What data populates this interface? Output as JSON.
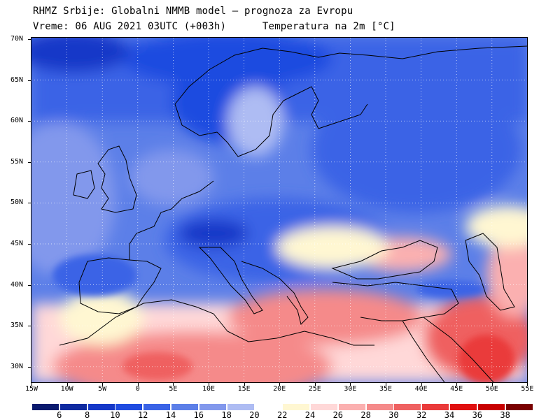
{
  "header": {
    "title_line1": "RHMZ Srbije: Globalni NMMB model — prognoza za Evropu",
    "title_line2": "Vreme: 06 AUG 2021 03UTC (+003h)      Temperatura na 2m [°C]"
  },
  "map": {
    "lat_labels": [
      "70N",
      "65N",
      "60N",
      "55N",
      "50N",
      "45N",
      "40N",
      "35N",
      "30N"
    ],
    "lon_labels": [
      "15W",
      "10W",
      "5W",
      "0",
      "5E",
      "10E",
      "15E",
      "20E",
      "25E",
      "30E",
      "35E",
      "40E",
      "45E",
      "50E",
      "55E"
    ]
  },
  "colorbar": {
    "labels": [
      "6",
      "8",
      "10",
      "12",
      "14",
      "16",
      "18",
      "20",
      "22",
      "24",
      "26",
      "28",
      "30",
      "32",
      "34",
      "36",
      "38"
    ],
    "colors": [
      "#0a1a6e",
      "#0f2aa0",
      "#1538c8",
      "#1f4be0",
      "#3a63e6",
      "#5c7fe8",
      "#8298ec",
      "#aebcf3",
      "#ffffff",
      "#fff7d2",
      "#ffd8d8",
      "#fbb0b0",
      "#f58a8a",
      "#ef6161",
      "#ea3a3a",
      "#e00f0f",
      "#c80000",
      "#7a0000"
    ]
  }
}
